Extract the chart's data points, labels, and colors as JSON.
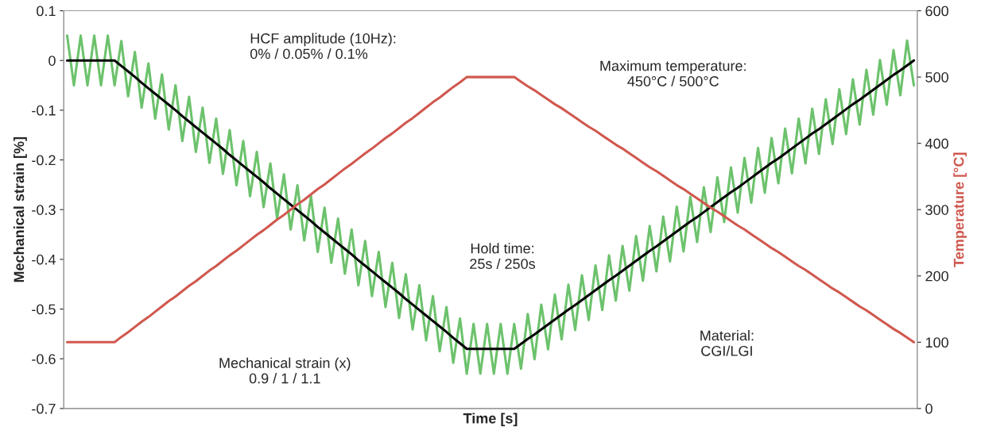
{
  "chart_data": {
    "type": "line",
    "xlabel": "Time [s]",
    "ylabel": "Mechanical strain [%]",
    "y2label": "Temperature [°C]",
    "categories": [
      null,
      null,
      null,
      null,
      null,
      null,
      null,
      null,
      null,
      null,
      null,
      null,
      null,
      null,
      null,
      null,
      null,
      null,
      null,
      null,
      null,
      null,
      null,
      null,
      null,
      null,
      null,
      null,
      null,
      null,
      null,
      null,
      null,
      null,
      null,
      null,
      null,
      null,
      null,
      null,
      null,
      null,
      null,
      null,
      null,
      null,
      null,
      null,
      null,
      null,
      null,
      null,
      null,
      null,
      null,
      null,
      null,
      null,
      null,
      null,
      null,
      null,
      null,
      null,
      null,
      null,
      null,
      null,
      null,
      null,
      null,
      null,
      null,
      null,
      null,
      null,
      null,
      null,
      null,
      null,
      null,
      null,
      null,
      null,
      null,
      null,
      null,
      null,
      null,
      null,
      null,
      null,
      null,
      null,
      null,
      null,
      null,
      null,
      null,
      null,
      null,
      null,
      null,
      null,
      null,
      null,
      null,
      null,
      null,
      null,
      null,
      null,
      null,
      null,
      null,
      null,
      null,
      null,
      null,
      null,
      null,
      null,
      null,
      null,
      null,
      null
    ],
    "ylim": [
      -0.7,
      0.1
    ],
    "yticks": [
      -0.7,
      -0.6,
      -0.5,
      -0.4,
      -0.3,
      -0.2,
      -0.1,
      0,
      0.1
    ],
    "y2lim": [
      0,
      600
    ],
    "y2ticks": [
      0,
      100,
      200,
      300,
      400,
      500,
      600
    ],
    "tick_labels": "y",
    "series": [
      {
        "color": "#6cc26c",
        "values": [
          0.05,
          -0.05,
          0.05,
          -0.05,
          0.05,
          -0.05,
          0.05,
          -0.05,
          0.039,
          -0.072,
          0.017,
          -0.095,
          -0.006,
          -0.117,
          -0.028,
          -0.139,
          -0.05,
          -0.162,
          -0.073,
          -0.184,
          -0.095,
          -0.206,
          -0.117,
          -0.228,
          -0.14,
          -0.251,
          -0.162,
          -0.273,
          -0.184,
          -0.295,
          -0.207,
          -0.318,
          -0.229,
          -0.34,
          -0.251,
          -0.362,
          -0.273,
          -0.385,
          -0.296,
          -0.407,
          -0.318,
          -0.429,
          -0.34,
          -0.452,
          -0.363,
          -0.474,
          -0.385,
          -0.496,
          -0.407,
          -0.518,
          -0.43,
          -0.541,
          -0.452,
          -0.563,
          -0.474,
          -0.585,
          -0.496,
          -0.608,
          -0.519,
          -0.63,
          -0.53,
          -0.63,
          -0.53,
          -0.63,
          -0.53,
          -0.63,
          -0.53,
          -0.62,
          -0.51,
          -0.601,
          -0.491,
          -0.581,
          -0.471,
          -0.561,
          -0.451,
          -0.542,
          -0.432,
          -0.522,
          -0.412,
          -0.502,
          -0.392,
          -0.483,
          -0.373,
          -0.463,
          -0.353,
          -0.443,
          -0.333,
          -0.424,
          -0.314,
          -0.404,
          -0.294,
          -0.384,
          -0.274,
          -0.365,
          -0.255,
          -0.345,
          -0.235,
          -0.325,
          -0.215,
          -0.306,
          -0.196,
          -0.286,
          -0.176,
          -0.266,
          -0.156,
          -0.247,
          -0.137,
          -0.227,
          -0.117,
          -0.207,
          -0.097,
          -0.188,
          -0.078,
          -0.168,
          -0.058,
          -0.148,
          -0.038,
          -0.129,
          -0.019,
          -0.109,
          0.001,
          -0.089,
          0.021,
          -0.07,
          0.04,
          -0.05
        ]
      },
      {
        "color": "#000000",
        "values": [
          0,
          0,
          0,
          0,
          0,
          0,
          0,
          0,
          -0.011,
          -0.022,
          -0.033,
          -0.045,
          -0.056,
          -0.067,
          -0.078,
          -0.089,
          -0.1,
          -0.112,
          -0.123,
          -0.134,
          -0.145,
          -0.156,
          -0.167,
          -0.178,
          -0.19,
          -0.201,
          -0.212,
          -0.223,
          -0.234,
          -0.245,
          -0.257,
          -0.268,
          -0.279,
          -0.29,
          -0.301,
          -0.312,
          -0.323,
          -0.335,
          -0.346,
          -0.357,
          -0.368,
          -0.379,
          -0.39,
          -0.402,
          -0.413,
          -0.424,
          -0.435,
          -0.446,
          -0.457,
          -0.468,
          -0.48,
          -0.491,
          -0.502,
          -0.513,
          -0.524,
          -0.535,
          -0.546,
          -0.558,
          -0.569,
          -0.58,
          -0.58,
          -0.58,
          -0.58,
          -0.58,
          -0.58,
          -0.58,
          -0.58,
          -0.57,
          -0.56,
          -0.551,
          -0.541,
          -0.531,
          -0.521,
          -0.511,
          -0.501,
          -0.492,
          -0.482,
          -0.472,
          -0.462,
          -0.452,
          -0.442,
          -0.433,
          -0.423,
          -0.413,
          -0.403,
          -0.393,
          -0.383,
          -0.374,
          -0.364,
          -0.354,
          -0.344,
          -0.334,
          -0.324,
          -0.315,
          -0.305,
          -0.295,
          -0.285,
          -0.275,
          -0.265,
          -0.256,
          -0.246,
          -0.236,
          -0.226,
          -0.216,
          -0.206,
          -0.197,
          -0.187,
          -0.177,
          -0.167,
          -0.157,
          -0.147,
          -0.138,
          -0.128,
          -0.118,
          -0.108,
          -0.098,
          -0.088,
          -0.079,
          -0.069,
          -0.059,
          -0.049,
          -0.039,
          -0.029,
          -0.02,
          -0.01,
          0
        ]
      },
      {
        "color": "#d0584f",
        "axis": "y2",
        "values": [
          100,
          100,
          100,
          100,
          100,
          100,
          100,
          100,
          108,
          115,
          123,
          131,
          138,
          146,
          154,
          162,
          169,
          177,
          185,
          192,
          200,
          208,
          215,
          223,
          231,
          238,
          246,
          254,
          262,
          269,
          277,
          285,
          292,
          300,
          308,
          315,
          323,
          331,
          338,
          346,
          354,
          362,
          369,
          377,
          385,
          392,
          400,
          408,
          415,
          423,
          431,
          438,
          446,
          454,
          462,
          469,
          477,
          485,
          492,
          500,
          500,
          500,
          500,
          500,
          500,
          500,
          500,
          493,
          486,
          480,
          473,
          466,
          459,
          453,
          446,
          439,
          432,
          425,
          419,
          412,
          405,
          398,
          392,
          385,
          378,
          371,
          364,
          358,
          351,
          344,
          337,
          331,
          324,
          317,
          310,
          303,
          297,
          290,
          283,
          276,
          270,
          263,
          256,
          249,
          242,
          236,
          229,
          222,
          215,
          209,
          202,
          195,
          188,
          181,
          175,
          168,
          161,
          154,
          148,
          141,
          134,
          127,
          120,
          114,
          107,
          100
        ]
      }
    ],
    "annotations": [
      "HCF amplitude (10Hz):\n0% / 0.05% / 0.1%",
      "Maximum temperature:\n450°C / 500°C",
      "Hold time:\n25s / 250s",
      "Mechanical strain (x)\n0.9 / 1 / 1.1",
      "Material:\nCGI/LGI"
    ]
  }
}
